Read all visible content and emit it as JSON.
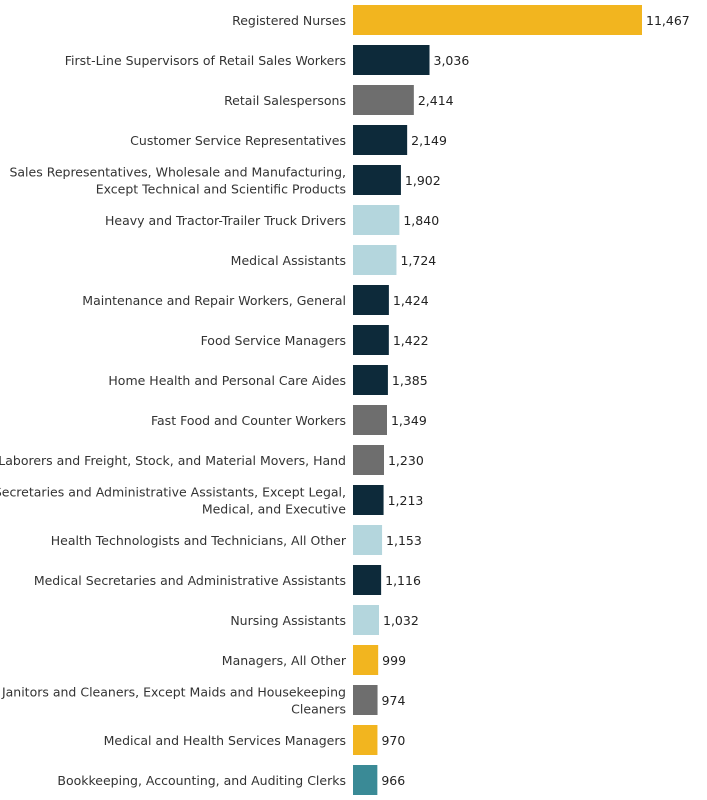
{
  "chart_data": {
    "type": "bar",
    "orientation": "horizontal",
    "title": "",
    "xlabel": "",
    "ylabel": "",
    "xlim": [
      0,
      11467
    ],
    "grid": false,
    "legend": "none",
    "categories": [
      [
        "Registered Nurses"
      ],
      [
        "First-Line Supervisors of Retail Sales Workers"
      ],
      [
        "Retail Salespersons"
      ],
      [
        "Customer Service Representatives"
      ],
      [
        "Sales Representatives, Wholesale and Manufacturing,",
        "Except Technical and Scientific Products"
      ],
      [
        "Heavy and Tractor-Trailer Truck Drivers"
      ],
      [
        "Medical Assistants"
      ],
      [
        "Maintenance and Repair Workers, General"
      ],
      [
        "Food Service Managers"
      ],
      [
        "Home Health and Personal Care Aides"
      ],
      [
        "Fast Food and Counter Workers"
      ],
      [
        "Laborers and Freight, Stock, and Material Movers, Hand"
      ],
      [
        "Secretaries and Administrative Assistants, Except Legal,",
        "Medical, and Executive"
      ],
      [
        "Health Technologists and Technicians, All Other"
      ],
      [
        "Medical Secretaries and Administrative Assistants"
      ],
      [
        "Nursing Assistants"
      ],
      [
        "Managers, All Other"
      ],
      [
        "Janitors and Cleaners, Except Maids and Housekeeping",
        "Cleaners"
      ],
      [
        "Medical and Health Services Managers"
      ],
      [
        "Bookkeeping, Accounting, and Auditing Clerks"
      ]
    ],
    "values": [
      11467,
      3036,
      2414,
      2149,
      1902,
      1840,
      1724,
      1424,
      1422,
      1385,
      1349,
      1230,
      1213,
      1153,
      1116,
      1032,
      999,
      974,
      970,
      966
    ],
    "value_labels": [
      "11,467",
      "3,036",
      "2,414",
      "2,149",
      "1,902",
      "1,840",
      "1,724",
      "1,424",
      "1,422",
      "1,385",
      "1,349",
      "1,230",
      "1,213",
      "1,153",
      "1,116",
      "1,032",
      "999",
      "974",
      "970",
      "966"
    ],
    "colors": [
      "#F2B51F",
      "#0D2A3A",
      "#6E6E6E",
      "#0D2A3A",
      "#0D2A3A",
      "#B4D6DD",
      "#B4D6DD",
      "#0D2A3A",
      "#0D2A3A",
      "#0D2A3A",
      "#6E6E6E",
      "#6E6E6E",
      "#0D2A3A",
      "#B4D6DD",
      "#0D2A3A",
      "#B4D6DD",
      "#F2B51F",
      "#6E6E6E",
      "#F2B51F",
      "#3A8A96"
    ]
  }
}
